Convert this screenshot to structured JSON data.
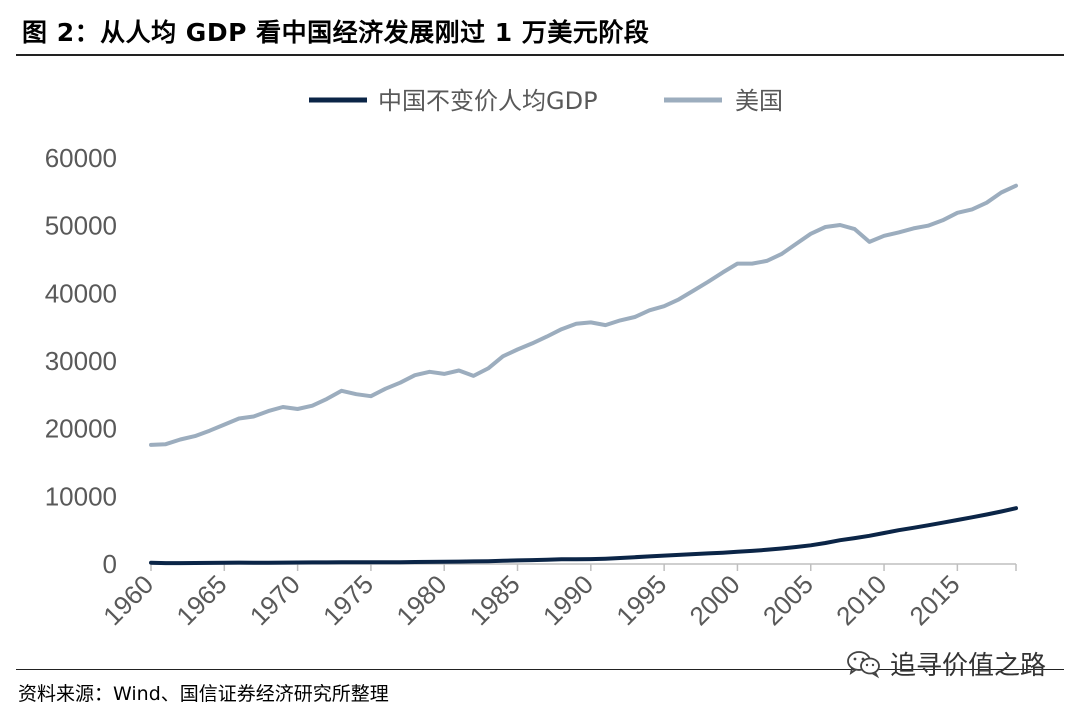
{
  "figure": {
    "title": "图 2：从人均 GDP 看中国经济发展刚过 1 万美元阶段",
    "source": "资料来源：Wind、国信证券经济研究所整理",
    "watermark": "追寻价值之路",
    "watermark_icon": "wechat-icon"
  },
  "chart_data": {
    "type": "line",
    "title": "",
    "xlabel": "",
    "ylabel": "",
    "xlim": [
      1960,
      2019
    ],
    "ylim": [
      0,
      60000
    ],
    "yticks": [
      0,
      10000,
      20000,
      30000,
      40000,
      50000,
      60000
    ],
    "xticks": [
      1960,
      1965,
      1970,
      1975,
      1980,
      1985,
      1990,
      1995,
      2000,
      2005,
      2010,
      2015
    ],
    "grid": false,
    "legend": "top",
    "x": [
      1960,
      1961,
      1962,
      1963,
      1964,
      1965,
      1966,
      1967,
      1968,
      1969,
      1970,
      1971,
      1972,
      1973,
      1974,
      1975,
      1976,
      1977,
      1978,
      1979,
      1980,
      1981,
      1982,
      1983,
      1984,
      1985,
      1986,
      1987,
      1988,
      1989,
      1990,
      1991,
      1992,
      1993,
      1994,
      1995,
      1996,
      1997,
      1998,
      1999,
      2000,
      2001,
      2002,
      2003,
      2004,
      2005,
      2006,
      2007,
      2008,
      2009,
      2010,
      2011,
      2012,
      2013,
      2014,
      2015,
      2016,
      2017,
      2018,
      2019
    ],
    "series": [
      {
        "name": "中国不变价人均GDP",
        "color": "#0b2547",
        "values": [
          190,
          140,
          135,
          145,
          165,
          190,
          200,
          185,
          175,
          200,
          225,
          230,
          235,
          245,
          250,
          265,
          255,
          270,
          295,
          315,
          335,
          350,
          380,
          415,
          470,
          530,
          570,
          630,
          690,
          710,
          730,
          790,
          890,
          1005,
          1125,
          1240,
          1350,
          1460,
          1560,
          1675,
          1800,
          1940,
          2100,
          2295,
          2505,
          2770,
          3100,
          3515,
          3825,
          4165,
          4585,
          4995,
          5345,
          5720,
          6110,
          6500,
          6895,
          7310,
          7760,
          8240
        ]
      },
      {
        "name": "美国",
        "color": "#9cadbe",
        "values": [
          17600,
          17700,
          18400,
          18900,
          19700,
          20600,
          21500,
          21800,
          22600,
          23200,
          22900,
          23400,
          24400,
          25600,
          25100,
          24800,
          25900,
          26800,
          27900,
          28400,
          28100,
          28600,
          27800,
          28900,
          30700,
          31700,
          32600,
          33600,
          34700,
          35500,
          35700,
          35300,
          36000,
          36500,
          37500,
          38100,
          39100,
          40400,
          41700,
          43100,
          44400,
          44400,
          44800,
          45800,
          47300,
          48800,
          49800,
          50100,
          49500,
          47600,
          48500,
          49000,
          49600,
          50000,
          50800,
          51900,
          52400,
          53400,
          54900,
          55900
        ]
      }
    ]
  }
}
